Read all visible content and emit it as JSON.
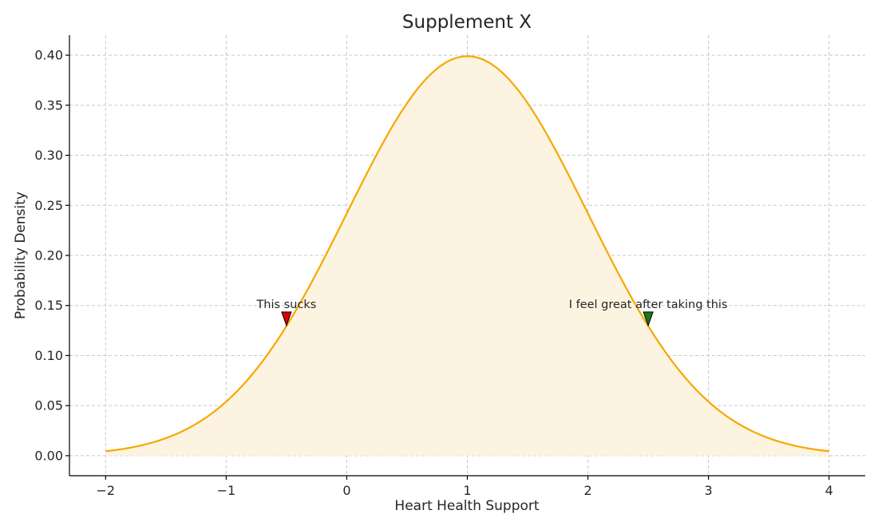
{
  "chart_data": {
    "type": "area",
    "title": "Supplement X",
    "xlabel": "Heart Health Support",
    "ylabel": "Probability Density",
    "xlim": [
      -2.3,
      4.3
    ],
    "ylim": [
      -0.02,
      0.42
    ],
    "x_ticks": [
      -2,
      -1,
      0,
      1,
      2,
      3,
      4
    ],
    "x_tick_labels": [
      "−2",
      "−1",
      "0",
      "1",
      "2",
      "3",
      "4"
    ],
    "y_ticks": [
      0.0,
      0.05,
      0.1,
      0.15,
      0.2,
      0.25,
      0.3,
      0.35,
      0.4
    ],
    "y_tick_labels": [
      "0.00",
      "0.05",
      "0.10",
      "0.15",
      "0.20",
      "0.25",
      "0.30",
      "0.35",
      "0.40"
    ],
    "grid": true,
    "series": [
      {
        "distribution": "normal",
        "mean": 1,
        "std": 1,
        "x_range": [
          -2,
          4
        ],
        "color": "#f5a800",
        "fill_color": "#fdf3e1"
      }
    ],
    "annotations": [
      {
        "text": "This sucks",
        "x": -0.5,
        "y": 0.13,
        "marker": "triangle-down",
        "color": "#e00000"
      },
      {
        "text": "I feel great after taking this",
        "x": 2.5,
        "y": 0.13,
        "marker": "triangle-down",
        "color": "#1a7a1a"
      }
    ]
  }
}
